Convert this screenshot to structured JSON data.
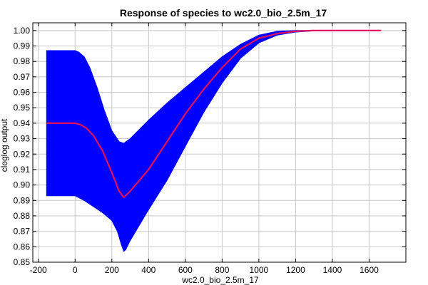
{
  "chart_data": {
    "type": "area",
    "title": "Response of species to wc2.0_bio_2.5m_17",
    "xlabel": "wc2.0_bio_2.5m_17",
    "ylabel": "cloglog output",
    "xlim": [
      -230,
      1800
    ],
    "ylim": [
      0.85,
      1.005
    ],
    "xticks": [
      -200,
      0,
      200,
      400,
      600,
      800,
      1000,
      1200,
      1400,
      1600
    ],
    "xtick_labels": [
      "-200",
      "0",
      "200",
      "400",
      "600",
      "800",
      "1000",
      "1200",
      "1400",
      "1600"
    ],
    "yticks": [
      0.85,
      0.86,
      0.87,
      0.88,
      0.89,
      0.9,
      0.91,
      0.92,
      0.93,
      0.94,
      0.95,
      0.96,
      0.97,
      0.98,
      0.99,
      1.0
    ],
    "ytick_labels": [
      "0.85",
      "0.86",
      "0.87",
      "0.88",
      "0.89",
      "0.90",
      "0.91",
      "0.92",
      "0.93",
      "0.94",
      "0.95",
      "0.96",
      "0.97",
      "0.98",
      "0.99",
      "1.00"
    ],
    "grid": true,
    "colors": {
      "band": "#0000ff",
      "mean": "#e0105a"
    },
    "series": [
      {
        "kind": "band_upper",
        "x": [
          -155,
          0,
          20,
          50,
          80,
          120,
          160,
          200,
          240,
          265,
          300,
          400,
          500,
          600,
          700,
          800,
          900,
          1000,
          1100,
          1200,
          1300,
          1400,
          1500,
          1665
        ],
        "y": [
          0.987,
          0.987,
          0.986,
          0.983,
          0.976,
          0.963,
          0.948,
          0.935,
          0.928,
          0.927,
          0.93,
          0.942,
          0.953,
          0.963,
          0.973,
          0.983,
          0.991,
          0.997,
          0.9995,
          1.0,
          1.0,
          1.0,
          1.0,
          1.0
        ]
      },
      {
        "kind": "band_lower",
        "x": [
          -155,
          0,
          50,
          100,
          150,
          200,
          230,
          250,
          265,
          275,
          300,
          350,
          400,
          500,
          600,
          700,
          800,
          900,
          1000,
          1100,
          1200,
          1300,
          1400,
          1500,
          1665
        ],
        "y": [
          0.893,
          0.893,
          0.89,
          0.886,
          0.882,
          0.877,
          0.87,
          0.862,
          0.857,
          0.858,
          0.864,
          0.874,
          0.884,
          0.903,
          0.925,
          0.947,
          0.966,
          0.982,
          0.992,
          0.997,
          0.999,
          0.9998,
          1.0,
          1.0,
          1.0
        ]
      },
      {
        "kind": "mean",
        "x": [
          -155,
          0,
          30,
          60,
          100,
          150,
          200,
          240,
          265,
          300,
          400,
          500,
          600,
          700,
          800,
          900,
          1000,
          1100,
          1200,
          1300,
          1400,
          1500,
          1665
        ],
        "y": [
          0.94,
          0.94,
          0.939,
          0.937,
          0.932,
          0.922,
          0.908,
          0.896,
          0.892,
          0.896,
          0.91,
          0.928,
          0.946,
          0.962,
          0.976,
          0.988,
          0.995,
          0.998,
          0.9995,
          1.0,
          1.0,
          1.0,
          1.0
        ]
      }
    ]
  }
}
